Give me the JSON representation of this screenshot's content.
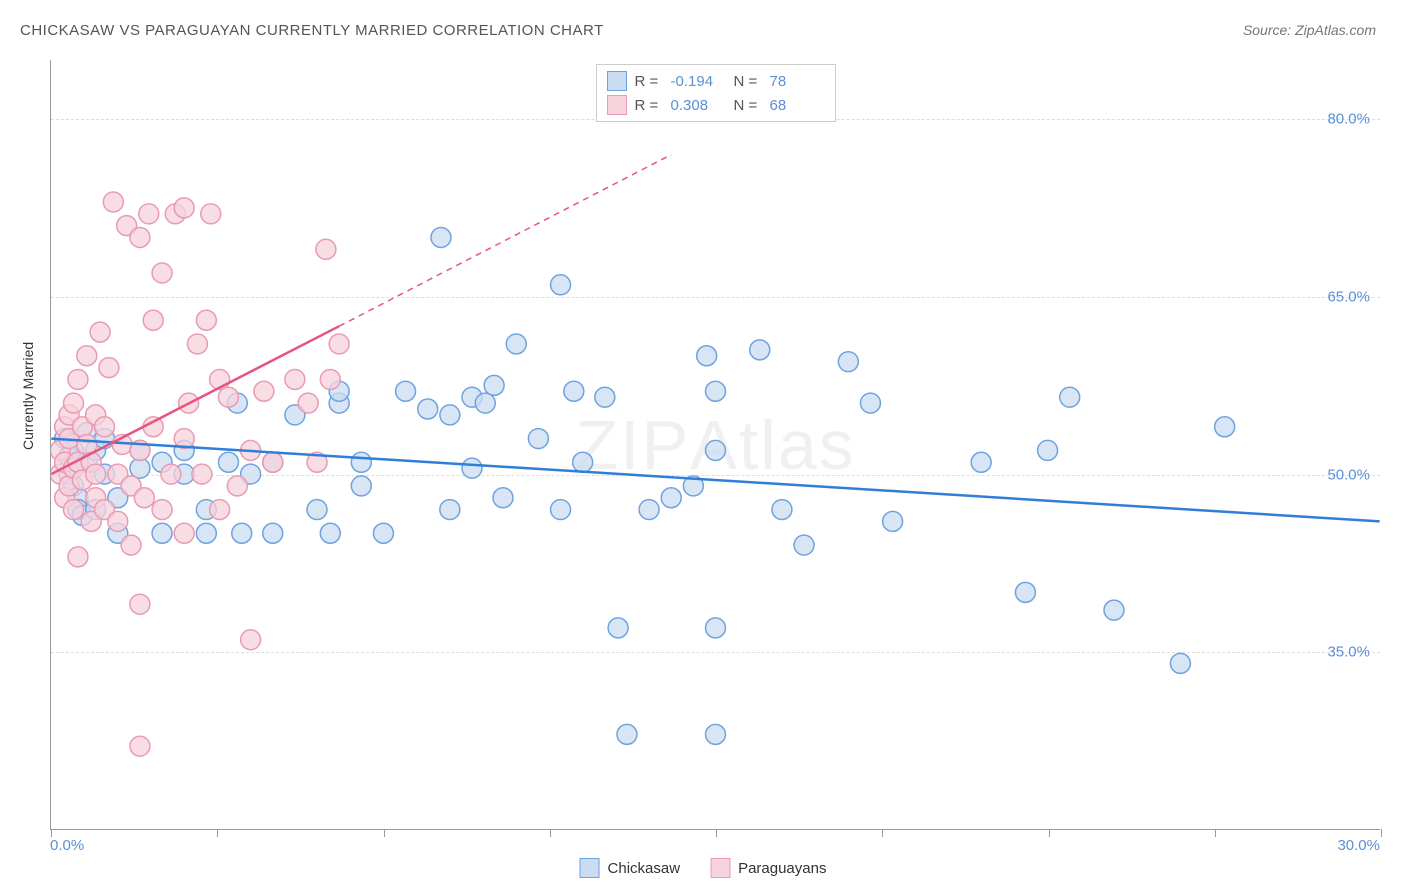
{
  "title": "CHICKASAW VS PARAGUAYAN CURRENTLY MARRIED CORRELATION CHART",
  "source": "Source: ZipAtlas.com",
  "ylabel": "Currently Married",
  "watermark_left": "ZIP",
  "watermark_right": "Atlas",
  "chart": {
    "type": "scatter",
    "xlim": [
      0,
      30
    ],
    "ylim": [
      20,
      85
    ],
    "x_axis_labels": {
      "min": "0.0%",
      "max": "30.0%"
    },
    "y_ticks": [
      35.0,
      50.0,
      65.0,
      80.0
    ],
    "y_tick_labels": [
      "35.0%",
      "50.0%",
      "65.0%",
      "80.0%"
    ],
    "x_ticks": [
      0,
      3.75,
      7.5,
      11.25,
      15,
      18.75,
      22.5,
      26.25,
      30
    ],
    "background_color": "#ffffff",
    "grid_color": "#dddddd",
    "axis_color": "#999999",
    "tick_label_color": "#5b8fd6",
    "stat_value_color": "#5b8fd6",
    "series": [
      {
        "name": "Chickasaw",
        "fill": "#c9dcf2",
        "stroke": "#6fa3e0",
        "line_color": "#2f7ed8",
        "r_label": "R =",
        "n_label": "N =",
        "r_value": "-0.194",
        "n_value": "78",
        "trend": {
          "x1": 0,
          "y1": 53,
          "x2": 30,
          "y2": 46,
          "dash": false,
          "width": 2.5
        },
        "points": [
          [
            0.3,
            53
          ],
          [
            0.4,
            51.5
          ],
          [
            0.4,
            50
          ],
          [
            0.5,
            52
          ],
          [
            0.5,
            49
          ],
          [
            0.6,
            48
          ],
          [
            0.6,
            47
          ],
          [
            0.7,
            46.5
          ],
          [
            0.8,
            51
          ],
          [
            0.8,
            53.5
          ],
          [
            1,
            47
          ],
          [
            1,
            52
          ],
          [
            1.2,
            53
          ],
          [
            1.2,
            50
          ],
          [
            1.5,
            45
          ],
          [
            1.5,
            48
          ],
          [
            2,
            50.5
          ],
          [
            2,
            52
          ],
          [
            2.5,
            45
          ],
          [
            2.5,
            51
          ],
          [
            3,
            50
          ],
          [
            3,
            52
          ],
          [
            3.5,
            45
          ],
          [
            3.5,
            47
          ],
          [
            4,
            51
          ],
          [
            4.2,
            56
          ],
          [
            4.3,
            45
          ],
          [
            4.5,
            50
          ],
          [
            5,
            45
          ],
          [
            5,
            51
          ],
          [
            5.5,
            55
          ],
          [
            6,
            47
          ],
          [
            6.3,
            45
          ],
          [
            6.5,
            56
          ],
          [
            6.5,
            57
          ],
          [
            7,
            49
          ],
          [
            7,
            51
          ],
          [
            7.5,
            45
          ],
          [
            8,
            57
          ],
          [
            8.5,
            55.5
          ],
          [
            8.8,
            70
          ],
          [
            9,
            47
          ],
          [
            9,
            55
          ],
          [
            9.5,
            50.5
          ],
          [
            9.5,
            56.5
          ],
          [
            9.8,
            56
          ],
          [
            10,
            57.5
          ],
          [
            10.2,
            48
          ],
          [
            10.5,
            61
          ],
          [
            11,
            53
          ],
          [
            11.5,
            66
          ],
          [
            11.5,
            47
          ],
          [
            11.8,
            57
          ],
          [
            12,
            51
          ],
          [
            12.5,
            56.5
          ],
          [
            12.8,
            37
          ],
          [
            13,
            28
          ],
          [
            13.5,
            47
          ],
          [
            14,
            48
          ],
          [
            14.5,
            49
          ],
          [
            14.8,
            60
          ],
          [
            15,
            28
          ],
          [
            15,
            37
          ],
          [
            15,
            57
          ],
          [
            15,
            52
          ],
          [
            16,
            60.5
          ],
          [
            16.5,
            47
          ],
          [
            17,
            44
          ],
          [
            18,
            59.5
          ],
          [
            18.5,
            56
          ],
          [
            19,
            46
          ],
          [
            21,
            51
          ],
          [
            22,
            40
          ],
          [
            22.5,
            52
          ],
          [
            23,
            56.5
          ],
          [
            24,
            38.5
          ],
          [
            25.5,
            34
          ],
          [
            26.5,
            54
          ]
        ]
      },
      {
        "name": "Paraguayans",
        "fill": "#f6d2dc",
        "stroke": "#ea9ab2",
        "line_color": "#e75480",
        "r_label": "R =",
        "n_label": "N =",
        "r_value": "0.308",
        "n_value": "68",
        "trend": {
          "x1": 0,
          "y1": 50,
          "x2": 6.5,
          "y2": 62.5,
          "dash": false,
          "width": 2.5
        },
        "trend_ext": {
          "x1": 6.5,
          "y1": 62.5,
          "x2": 14,
          "y2": 77,
          "dash": true,
          "width": 1.5
        },
        "points": [
          [
            0.2,
            50
          ],
          [
            0.2,
            52
          ],
          [
            0.3,
            48
          ],
          [
            0.3,
            51
          ],
          [
            0.3,
            54
          ],
          [
            0.4,
            49
          ],
          [
            0.4,
            53
          ],
          [
            0.4,
            55
          ],
          [
            0.5,
            47
          ],
          [
            0.5,
            50.5
          ],
          [
            0.5,
            56
          ],
          [
            0.6,
            51
          ],
          [
            0.6,
            58
          ],
          [
            0.6,
            43
          ],
          [
            0.7,
            49.5
          ],
          [
            0.7,
            54
          ],
          [
            0.8,
            52.5
          ],
          [
            0.8,
            60
          ],
          [
            0.9,
            46
          ],
          [
            0.9,
            51
          ],
          [
            1,
            48
          ],
          [
            1,
            50
          ],
          [
            1,
            55
          ],
          [
            1.1,
            62
          ],
          [
            1.2,
            47
          ],
          [
            1.2,
            54
          ],
          [
            1.3,
            59
          ],
          [
            1.4,
            73
          ],
          [
            1.5,
            46
          ],
          [
            1.5,
            50
          ],
          [
            1.6,
            52.5
          ],
          [
            1.7,
            71
          ],
          [
            1.8,
            44
          ],
          [
            1.8,
            49
          ],
          [
            2,
            70
          ],
          [
            2,
            52
          ],
          [
            2,
            39
          ],
          [
            2,
            27
          ],
          [
            2.1,
            48
          ],
          [
            2.2,
            72
          ],
          [
            2.3,
            54
          ],
          [
            2.3,
            63
          ],
          [
            2.5,
            47
          ],
          [
            2.5,
            67
          ],
          [
            2.7,
            50
          ],
          [
            2.8,
            72
          ],
          [
            3,
            45
          ],
          [
            3,
            53
          ],
          [
            3,
            72.5
          ],
          [
            3.1,
            56
          ],
          [
            3.3,
            61
          ],
          [
            3.4,
            50
          ],
          [
            3.5,
            63
          ],
          [
            3.6,
            72
          ],
          [
            3.8,
            47
          ],
          [
            3.8,
            58
          ],
          [
            4,
            56.5
          ],
          [
            4.2,
            49
          ],
          [
            4.5,
            52
          ],
          [
            4.5,
            36
          ],
          [
            4.8,
            57
          ],
          [
            5,
            51
          ],
          [
            5.5,
            58
          ],
          [
            5.8,
            56
          ],
          [
            6,
            51
          ],
          [
            6.2,
            69
          ],
          [
            6.3,
            58
          ],
          [
            6.5,
            61
          ]
        ]
      }
    ]
  },
  "legend_bottom": [
    {
      "label": "Chickasaw",
      "fill": "#c9dcf2",
      "stroke": "#6fa3e0"
    },
    {
      "label": "Paraguayans",
      "fill": "#f6d2dc",
      "stroke": "#ea9ab2"
    }
  ]
}
